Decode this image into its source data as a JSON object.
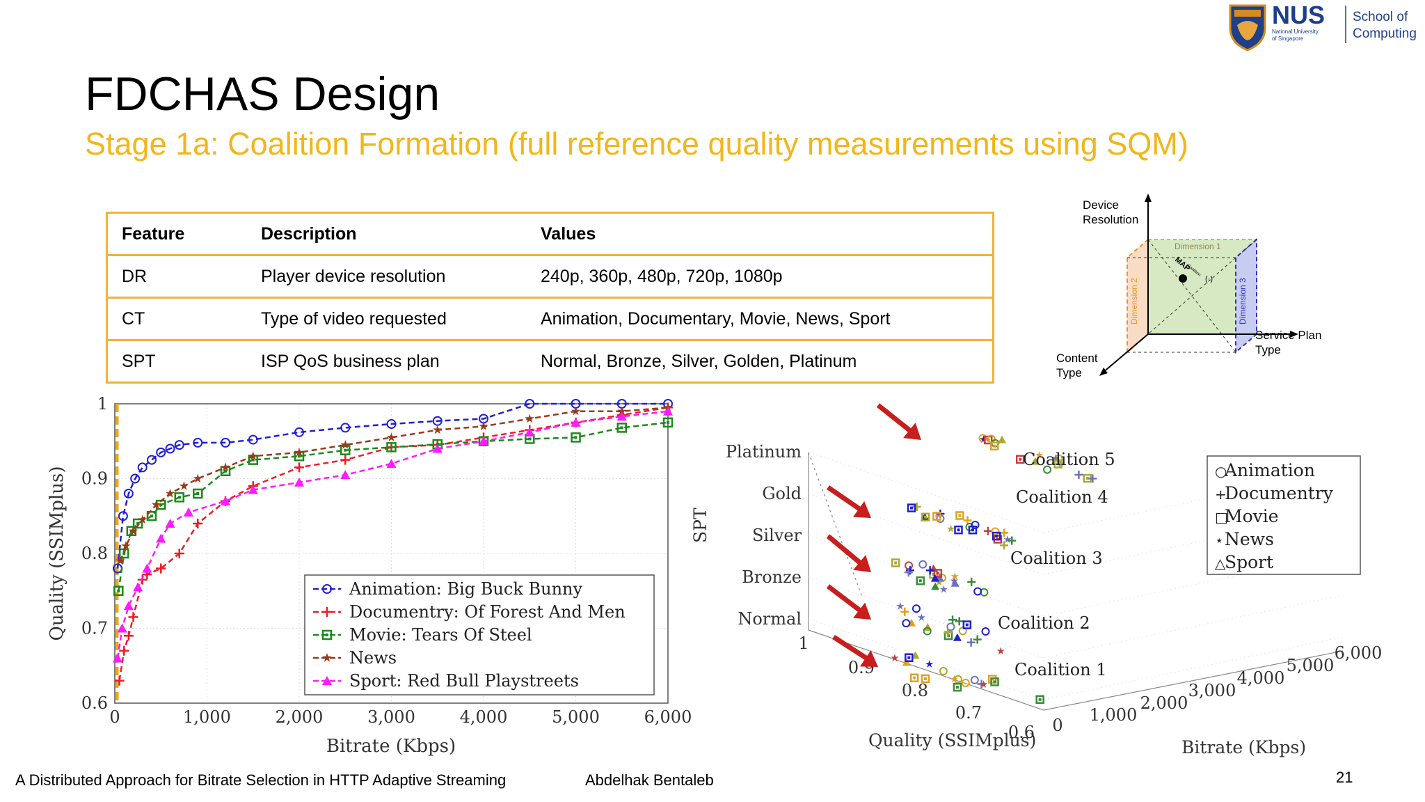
{
  "slide": {
    "title": "FDCHAS Design",
    "subtitle": "Stage 1a: Coalition Formation (full reference quality measurements using SQM)"
  },
  "logo": {
    "name": "NUS",
    "line1": "National University",
    "line2": "of Singapore",
    "school1": "School of",
    "school2": "Computing"
  },
  "table": {
    "headers": [
      "Feature",
      "Description",
      "Values"
    ],
    "rows": [
      [
        "DR",
        "Player device resolution",
        "240p, 360p, 480p, 720p, 1080p"
      ],
      [
        "CT",
        "Type of video requested",
        "Animation, Documentary, Movie, News, Sport"
      ],
      [
        "SPT",
        "ISP QoS business plan",
        "Normal, Bronze, Silver, Golden, Platinum"
      ]
    ]
  },
  "cube": {
    "y_axis": [
      "Device",
      "Resolution"
    ],
    "x_axis": [
      "Service Plan",
      "Type"
    ],
    "z_axis": [
      "Content",
      "Type"
    ],
    "dim1": "Dimension 1",
    "dim2": "Dimension 2",
    "dim3": "Dimension 3",
    "map_label": "MAP",
    "map_arg": "(·)",
    "map_sub": "Coalition"
  },
  "footer": {
    "left": "A Distributed Approach for Bitrate Selection in HTTP Adaptive Streaming",
    "author": "Abdelhak Bentaleb",
    "page": "21"
  },
  "chart_data": [
    {
      "type": "line",
      "xlabel": "Bitrate (Kbps)",
      "ylabel": "Quality (SSIMplus)",
      "xlim": [
        0,
        6000
      ],
      "ylim": [
        0.6,
        1
      ],
      "xticks": [
        0,
        1000,
        2000,
        3000,
        4000,
        5000,
        6000
      ],
      "xtick_labels": [
        "0",
        "1,000",
        "2,000",
        "3,000",
        "4,000",
        "5,000",
        "6,000"
      ],
      "yticks": [
        0.6,
        0.7,
        0.8,
        0.9,
        1
      ],
      "ytick_labels": [
        "0.6",
        "0.7",
        "0.8",
        "0.9",
        "1"
      ],
      "grid": true,
      "legend_position": "bottom-right",
      "series": [
        {
          "name": "Animation: Big Buck Bunny",
          "color": "#1f1fd6",
          "marker": "circle",
          "x": [
            30,
            90,
            150,
            220,
            300,
            400,
            500,
            600,
            700,
            900,
            1200,
            1500,
            2000,
            2500,
            3000,
            3500,
            4000,
            4500,
            5000,
            5500,
            6000
          ],
          "y": [
            0.78,
            0.85,
            0.88,
            0.9,
            0.915,
            0.925,
            0.935,
            0.94,
            0.945,
            0.948,
            0.948,
            0.952,
            0.962,
            0.968,
            0.973,
            0.977,
            0.98,
            1,
            1,
            1,
            1
          ]
        },
        {
          "name": "Documentry: Of Forest And Men",
          "color": "#ee1c24",
          "marker": "plus",
          "x": [
            50,
            100,
            150,
            200,
            300,
            350,
            500,
            700,
            900,
            1200,
            1500,
            2000,
            2500,
            3000,
            3500,
            4000,
            4500,
            5000,
            5500,
            6000
          ],
          "y": [
            0.63,
            0.67,
            0.69,
            0.715,
            0.765,
            0.772,
            0.78,
            0.8,
            0.84,
            0.87,
            0.89,
            0.915,
            0.925,
            0.942,
            0.945,
            0.955,
            0.965,
            0.975,
            0.985,
            0.995
          ]
        },
        {
          "name": "Movie: Tears Of Steel",
          "color": "#1a8a1a",
          "marker": "square",
          "x": [
            40,
            100,
            180,
            250,
            400,
            500,
            700,
            900,
            1200,
            1500,
            2000,
            2500,
            3000,
            3500,
            4000,
            4500,
            5000,
            5500,
            6000
          ],
          "y": [
            0.75,
            0.8,
            0.83,
            0.84,
            0.85,
            0.865,
            0.875,
            0.88,
            0.91,
            0.925,
            0.93,
            0.938,
            0.942,
            0.946,
            0.95,
            0.953,
            0.955,
            0.968,
            0.975
          ]
        },
        {
          "name": "News",
          "color": "#9b3a1a",
          "marker": "star",
          "x": [
            60,
            120,
            200,
            300,
            450,
            600,
            750,
            900,
            1200,
            1500,
            2000,
            2500,
            3000,
            3500,
            4000,
            4500,
            5000,
            5500,
            6000
          ],
          "y": [
            0.79,
            0.81,
            0.83,
            0.845,
            0.865,
            0.88,
            0.89,
            0.9,
            0.915,
            0.93,
            0.935,
            0.945,
            0.955,
            0.965,
            0.97,
            0.98,
            0.99,
            0.99,
            0.995
          ]
        },
        {
          "name": "Sport: Red Bull Playstreets",
          "color": "#ff1aff",
          "marker": "triangle",
          "x": [
            30,
            80,
            150,
            250,
            350,
            500,
            600,
            800,
            1200,
            1500,
            2000,
            2500,
            3000,
            3500,
            4000,
            4500,
            5000,
            5500,
            6000
          ],
          "y": [
            0.66,
            0.7,
            0.73,
            0.755,
            0.78,
            0.82,
            0.84,
            0.855,
            0.87,
            0.885,
            0.895,
            0.905,
            0.92,
            0.94,
            0.95,
            0.962,
            0.975,
            0.983,
            0.99
          ]
        }
      ]
    },
    {
      "type": "scatter",
      "xlabel": "Bitrate (Kbps)",
      "ylabel": "Quality (SSIMplus)",
      "zlabel": "SPT",
      "xticks": [
        0,
        1000,
        2000,
        3000,
        4000,
        5000,
        6000
      ],
      "xtick_labels": [
        "0",
        "1,000",
        "2,000",
        "3,000",
        "4,000",
        "5,000",
        "6,000"
      ],
      "yticks": [
        1,
        0.9,
        0.8,
        0.7,
        0.6
      ],
      "ytick_labels": [
        "1",
        "0.9",
        "0.8",
        "0.7",
        "0.6"
      ],
      "zticks": [
        "Normal",
        "Bronze",
        "Silver",
        "Gold",
        "Platinum"
      ],
      "coalitions": [
        "Coalition 1",
        "Coalition 2",
        "Coalition 3",
        "Coalition 4",
        "Coalition 5"
      ],
      "legend_position": "top-right",
      "legend": [
        {
          "symbol": "○",
          "label": "Animation"
        },
        {
          "symbol": "+",
          "label": "Documentry"
        },
        {
          "symbol": "□",
          "label": "Movie"
        },
        {
          "symbol": "⋆",
          "label": "News"
        },
        {
          "symbol": "△",
          "label": "Sport"
        }
      ]
    }
  ]
}
